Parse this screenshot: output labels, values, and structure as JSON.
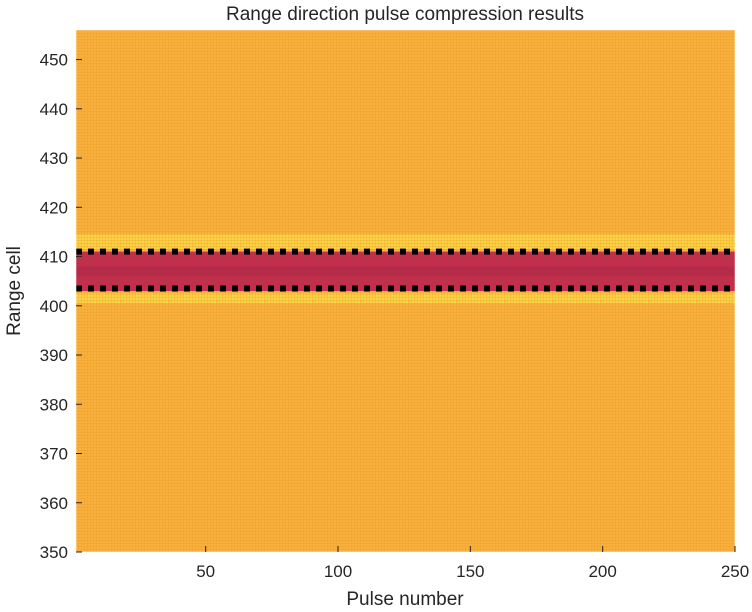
{
  "chart_data": {
    "type": "heatmap",
    "title": "Range direction pulse compression results",
    "xlabel": "Pulse number",
    "ylabel": "Range cell",
    "xlim": [
      1,
      250
    ],
    "ylim": [
      350,
      456
    ],
    "xticks": [
      50,
      100,
      150,
      200,
      250
    ],
    "yticks": [
      350,
      360,
      370,
      380,
      390,
      400,
      410,
      420,
      430,
      440,
      450
    ],
    "grid": false,
    "colorbar": false,
    "target_band": {
      "range_cells": [
        403,
        411
      ],
      "color": "#c0304a",
      "description_colors": [
        "#b02a4a",
        "#d24a3e"
      ]
    },
    "dashed_markers": [
      {
        "range_cell": 411,
        "color": "#000000"
      },
      {
        "range_cell": 403.5,
        "color": "#000000"
      }
    ],
    "background": {
      "base_color": "#f6b23c",
      "light_color": "#fbe24a",
      "light_rows": [
        412,
        413,
        414,
        401,
        402
      ]
    }
  }
}
